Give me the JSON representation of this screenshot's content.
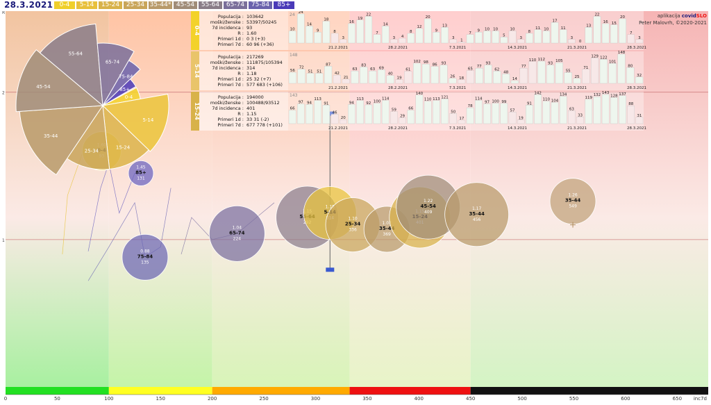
{
  "header": {
    "date": "28.3.2021",
    "legend": [
      {
        "label": "0-4",
        "color": "#f0cf2a"
      },
      {
        "label": "5-14",
        "color": "#e8c03c"
      },
      {
        "label": "15-24",
        "color": "#d8b24a"
      },
      {
        "label": "25-34",
        "color": "#c9a55a"
      },
      {
        "label": "35-44*",
        "color": "#b89a6a"
      },
      {
        "label": "45-54",
        "color": "#a08c78"
      },
      {
        "label": "55-64",
        "color": "#8a7d88"
      },
      {
        "label": "65-74",
        "color": "#7a6f9a"
      },
      {
        "label": "75-84",
        "color": "#6a62ac"
      },
      {
        "label": "85+",
        "color": "#4a3ab8"
      }
    ],
    "credit_line1": "aplikacija",
    "credit_brand_a": "covid",
    "credit_brand_b": "SLO",
    "credit_line2": "Peter Malovrh, ©2020-2021"
  },
  "chart_data": {
    "type": "scatter",
    "xlabel": "inc7d",
    "ylabel": "R",
    "xlim": [
      0,
      680
    ],
    "ylim": [
      0.0,
      2.55
    ],
    "x_ticks": [
      0,
      50,
      100,
      150,
      200,
      250,
      300,
      350,
      400,
      450,
      500,
      550,
      600,
      650
    ],
    "y_ticks": [
      1,
      2
    ],
    "bands": [
      {
        "from": 0,
        "to": 100,
        "color": "#22e022"
      },
      {
        "from": 100,
        "to": 200,
        "color": "#ffff22"
      },
      {
        "from": 200,
        "to": 333,
        "color": "#ffaa00"
      },
      {
        "from": 333,
        "to": 450,
        "color": "#ee1111"
      },
      {
        "from": 450,
        "to": 680,
        "color": "#111111"
      }
    ],
    "bubbles": [
      {
        "group": "85+",
        "r": 1.45,
        "inc7d": 131,
        "color": "#6a62c0"
      },
      {
        "group": "75-84",
        "r": 0.88,
        "inc7d": 135,
        "color": "#6c66b4"
      },
      {
        "group": "65-74",
        "r": 1.04,
        "inc7d": 224,
        "color": "#7a6fa0"
      },
      {
        "group": "55-64",
        "r": 1.15,
        "inc7d": 292,
        "color": "#8a7d8c"
      },
      {
        "group": "5-14",
        "r": 1.18,
        "inc7d": 314,
        "color": "#e9c43a"
      },
      {
        "group": "25-34",
        "r": 1.1,
        "inc7d": 336,
        "color": "#c9a55a"
      },
      {
        "group": "35-44",
        "r": 1.07,
        "inc7d": 369,
        "color": "#b89a6a"
      },
      {
        "group": "15-24",
        "r": 1.15,
        "inc7d": 401,
        "color": "#d8b24a"
      },
      {
        "group": "45-54",
        "r": 1.22,
        "inc7d": 409,
        "color": "#a08c78"
      },
      {
        "group": "35-44",
        "r": 1.17,
        "inc7d": 456,
        "color": "#b89a6a"
      },
      {
        "group": "35-44",
        "r": 1.26,
        "inc7d": 549,
        "color": "#c0a27a"
      },
      {
        "group": "0-4",
        "r": 1.6,
        "inc7d": 93,
        "color": "#f0cf2a"
      }
    ],
    "rose": [
      {
        "label": "0-4",
        "color": "#f3d22a"
      },
      {
        "label": "5-14",
        "color": "#ebc43a"
      },
      {
        "label": "15-24",
        "color": "#dcb44a"
      },
      {
        "label": "25-34",
        "color": "#c9a55a"
      },
      {
        "label": "35-44",
        "color": "#b89a6a"
      },
      {
        "label": "45-54",
        "color": "#a08c78"
      },
      {
        "label": "55-64",
        "color": "#8a7d88"
      },
      {
        "label": "65-74",
        "color": "#7a6f9a"
      },
      {
        "label": "75-84",
        "color": "#6a62ac"
      },
      {
        "label": "85+",
        "color": "#4a3ab8"
      }
    ],
    "panels": [
      {
        "group": "0-4",
        "stats": [
          [
            "Populacija",
            "103642"
          ],
          [
            "moški/ženske",
            "53397/50245"
          ],
          [
            "7d incidenca",
            "93"
          ],
          [
            "R",
            "1.60"
          ],
          [
            "Primeri 1d",
            "0 3 (+3)"
          ],
          [
            "Primeri 7d",
            "60 96 (+36)"
          ]
        ],
        "top_label": "24",
        "values": [
          10,
          24,
          14,
          9,
          18,
          8,
          3,
          16,
          19,
          22,
          7,
          14,
          3,
          4,
          8,
          12,
          20,
          9,
          13,
          3,
          1,
          7,
          9,
          10,
          10,
          5,
          10,
          3,
          8,
          11,
          10,
          17,
          11,
          3,
          0,
          13,
          22,
          16,
          15,
          20,
          7,
          3
        ],
        "dates": [
          "21.2.2021",
          "28.2.2021",
          "7.3.2021",
          "14.3.2021",
          "21.3.2021",
          "28.3.2021"
        ]
      },
      {
        "group": "5-14",
        "stats": [
          [
            "Populacija",
            "217269"
          ],
          [
            "moški/ženske",
            "111875/105394"
          ],
          [
            "7d incidenca",
            "314"
          ],
          [
            "R",
            "1.18"
          ],
          [
            "Primeri 1d",
            "25 32 (+7)"
          ],
          [
            "Primeri 7d",
            "577 683 (+106)"
          ]
        ],
        "top_label": "148",
        "values": [
          56,
          72,
          51,
          51,
          87,
          42,
          21,
          63,
          83,
          63,
          69,
          40,
          19,
          61,
          102,
          98,
          86,
          93,
          26,
          18,
          65,
          77,
          93,
          62,
          48,
          14,
          77,
          110,
          112,
          93,
          105,
          55,
          25,
          71,
          129,
          122,
          101,
          148,
          80,
          32
        ],
        "dates": [
          "21.2.2021",
          "28.2.2021",
          "7.3.2021",
          "14.3.2021",
          "21.3.2021",
          "28.3.2021"
        ]
      },
      {
        "group": "15-24",
        "stats": [
          [
            "Populacija",
            "194000"
          ],
          [
            "moški/ženske",
            "100488/93512"
          ],
          [
            "7d incidenca",
            "401"
          ],
          [
            "R",
            "1.15"
          ],
          [
            "Primeri 1d",
            "33 31 (-2)"
          ],
          [
            "Primeri 7d",
            "677 778 (+101)"
          ]
        ],
        "top_label": "143",
        "values": [
          66,
          97,
          94,
          113,
          91,
          46,
          20,
          94,
          113,
          92,
          100,
          114,
          59,
          29,
          66,
          140,
          110,
          113,
          121,
          50,
          17,
          78,
          114,
          97,
          100,
          99,
          57,
          19,
          91,
          142,
          110,
          104,
          134,
          63,
          33,
          119,
          132,
          143,
          128,
          137,
          88,
          31
        ],
        "dates": [
          "21.2.2021",
          "28.2.2021",
          "7.3.2021",
          "14.3.2021",
          "21.3.2021",
          "28.3.2021"
        ]
      }
    ]
  }
}
